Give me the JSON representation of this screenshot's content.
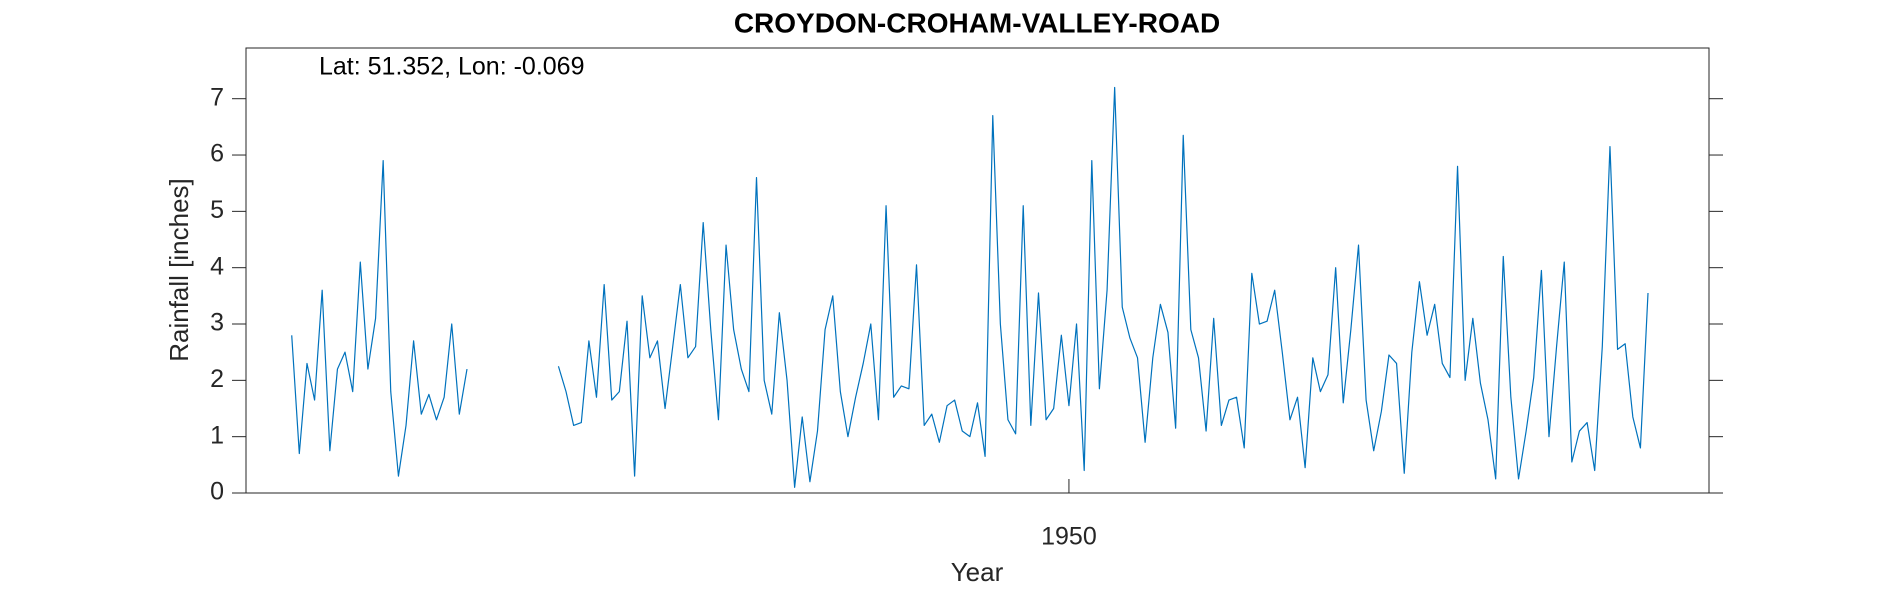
{
  "chart_data": {
    "type": "line",
    "title": "CROYDON-CROHAM-VALLEY-ROAD",
    "annotation": "Lat: 51.352, Lon: -0.069",
    "xlabel": "Year",
    "ylabel": "Rainfall [inches]",
    "color": "#0072bd",
    "xlim": [
      1941,
      1957
    ],
    "xticks": [
      1950
    ],
    "ylim": [
      0,
      7.9
    ],
    "yticks": [
      0,
      1,
      2,
      3,
      4,
      5,
      6,
      7
    ],
    "x": [
      1941.5,
      1941.583,
      1941.667,
      1941.75,
      1941.833,
      1941.917,
      1942,
      1942.083,
      1942.167,
      1942.25,
      1942.333,
      1942.417,
      1942.5,
      1942.583,
      1942.667,
      1942.75,
      1942.833,
      1942.917,
      1943,
      1943.083,
      1943.167,
      1943.25,
      1943.333,
      1943.417,
      1943.5,
      1943.583,
      1943.667,
      1943.75,
      1943.833,
      1943.917,
      1944,
      1944.083,
      1944.167,
      1944.25,
      1944.333,
      1944.417,
      1944.5,
      1944.583,
      1944.667,
      1944.75,
      1944.833,
      1944.917,
      1945,
      1945.083,
      1945.167,
      1945.25,
      1945.333,
      1945.417,
      1945.5,
      1945.583,
      1945.667,
      1945.75,
      1945.833,
      1945.917,
      1946,
      1946.083,
      1946.167,
      1946.25,
      1946.333,
      1946.417,
      1946.5,
      1946.583,
      1946.667,
      1946.75,
      1946.833,
      1946.917,
      1947,
      1947.083,
      1947.167,
      1947.25,
      1947.333,
      1947.417,
      1947.5,
      1947.583,
      1947.667,
      1947.75,
      1947.833,
      1947.917,
      1948,
      1948.083,
      1948.167,
      1948.25,
      1948.333,
      1948.417,
      1948.5,
      1948.583,
      1948.667,
      1948.75,
      1948.833,
      1948.917,
      1949,
      1949.083,
      1949.167,
      1949.25,
      1949.333,
      1949.417,
      1949.5,
      1949.583,
      1949.667,
      1949.75,
      1949.833,
      1949.917,
      1950,
      1950.083,
      1950.167,
      1950.25,
      1950.333,
      1950.417,
      1950.5,
      1950.583,
      1950.667,
      1950.75,
      1950.833,
      1950.917,
      1951,
      1951.083,
      1951.167,
      1951.25,
      1951.333,
      1951.417,
      1951.5,
      1951.583,
      1951.667,
      1951.75,
      1951.833,
      1951.917,
      1952,
      1952.083,
      1952.167,
      1952.25,
      1952.333,
      1952.417,
      1952.5,
      1952.583,
      1952.667,
      1952.75,
      1952.833,
      1952.917,
      1953,
      1953.083,
      1953.167,
      1953.25,
      1953.333,
      1953.417,
      1953.5,
      1953.583,
      1953.667,
      1953.75,
      1953.833,
      1953.917,
      1954,
      1954.083,
      1954.167,
      1954.25,
      1954.333,
      1954.417,
      1954.5,
      1954.583,
      1954.667,
      1954.75,
      1954.833,
      1954.917,
      1955,
      1955.083,
      1955.167,
      1955.25,
      1955.333,
      1955.417,
      1955.5,
      1955.583,
      1955.667,
      1955.75,
      1955.833,
      1955.917,
      1956,
      1956.083,
      1956.167,
      1956.25,
      1956.333
    ],
    "values": [
      2.8,
      0.7,
      2.3,
      1.65,
      3.6,
      0.75,
      2.2,
      2.5,
      1.8,
      4.1,
      2.2,
      3.1,
      5.9,
      1.8,
      0.3,
      1.2,
      2.7,
      1.4,
      1.75,
      1.3,
      1.7,
      3.0,
      1.4,
      2.2,
      null,
      null,
      null,
      null,
      null,
      null,
      null,
      null,
      null,
      null,
      null,
      2.25,
      1.8,
      1.2,
      1.25,
      2.7,
      1.7,
      3.7,
      1.65,
      1.8,
      3.05,
      0.3,
      3.5,
      2.4,
      2.7,
      1.5,
      2.6,
      3.7,
      2.4,
      2.6,
      4.8,
      2.9,
      1.3,
      4.4,
      2.9,
      2.2,
      1.8,
      5.6,
      2.0,
      1.4,
      3.2,
      2.0,
      0.1,
      1.35,
      0.2,
      1.1,
      2.9,
      3.5,
      1.8,
      1.0,
      1.7,
      2.3,
      3.0,
      1.3,
      5.1,
      1.7,
      1.9,
      1.85,
      4.05,
      1.2,
      1.4,
      0.9,
      1.55,
      1.65,
      1.1,
      1.0,
      1.6,
      0.65,
      6.7,
      3.0,
      1.3,
      1.05,
      5.1,
      1.2,
      3.55,
      1.3,
      1.5,
      2.8,
      1.55,
      3.0,
      0.4,
      5.9,
      1.85,
      3.6,
      7.2,
      3.3,
      2.75,
      2.4,
      0.9,
      2.4,
      3.35,
      2.85,
      1.15,
      6.35,
      2.9,
      2.4,
      1.1,
      3.1,
      1.2,
      1.65,
      1.7,
      0.8,
      3.9,
      3.0,
      3.05,
      3.6,
      2.5,
      1.3,
      1.7,
      0.45,
      2.4,
      1.8,
      2.1,
      4.0,
      1.6,
      2.9,
      4.4,
      1.65,
      0.75,
      1.45,
      2.45,
      2.3,
      0.35,
      2.5,
      3.75,
      2.8,
      3.35,
      2.3,
      2.05,
      5.8,
      2.0,
      3.1,
      1.95,
      1.3,
      0.25,
      4.2,
      1.7,
      0.25,
      1.1,
      2.05,
      3.95,
      1.0,
      2.6,
      4.1,
      0.55,
      1.1,
      1.25,
      0.4,
      2.6,
      6.15,
      2.55,
      2.65,
      1.35,
      0.8,
      3.55
    ]
  }
}
